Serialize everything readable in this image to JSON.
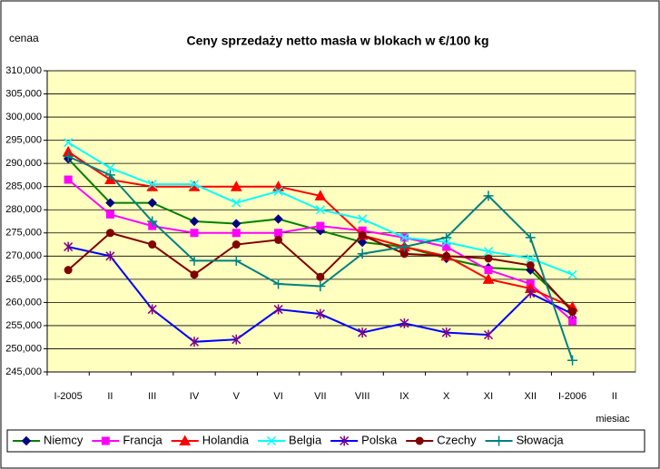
{
  "chart_data": {
    "type": "line",
    "title": "Ceny sprzedaży netto masła w blokach w €/100 kg",
    "y_label": "cenaa",
    "x_label": "miesiac",
    "categories": [
      "I-2005",
      "II",
      "III",
      "IV",
      "V",
      "VI",
      "VII",
      "VIII",
      "IX",
      "X",
      "XI",
      "XII",
      "I-2006",
      "II"
    ],
    "ylim": [
      245,
      310
    ],
    "yticks": [
      {
        "value": 245,
        "label": "245,000"
      },
      {
        "value": 250,
        "label": "250,000"
      },
      {
        "value": 255,
        "label": "255,000"
      },
      {
        "value": 260,
        "label": "260,000"
      },
      {
        "value": 265,
        "label": "265,000"
      },
      {
        "value": 270,
        "label": "270,000"
      },
      {
        "value": 275,
        "label": "275,000"
      },
      {
        "value": 280,
        "label": "280,000"
      },
      {
        "value": 285,
        "label": "285,000"
      },
      {
        "value": 290,
        "label": "290,000"
      },
      {
        "value": 295,
        "label": "295,000"
      },
      {
        "value": 300,
        "label": "300,000"
      },
      {
        "value": 305,
        "label": "305,000"
      },
      {
        "value": 310,
        "label": "310,000"
      }
    ],
    "grid": true,
    "legend": "bottom",
    "series": [
      {
        "name": "Niemcy",
        "color": "#008000",
        "marker_color": "#000080",
        "marker": "diamond",
        "values": [
          291,
          281.5,
          281.5,
          277.5,
          277,
          278,
          275.5,
          273,
          272,
          269.5,
          267.5,
          267,
          258.5,
          null
        ]
      },
      {
        "name": "Francja",
        "color": "#ff00ff",
        "marker_color": "#ff00ff",
        "marker": "square",
        "values": [
          286.5,
          279,
          276.5,
          275,
          275,
          275,
          276.5,
          275.5,
          274,
          272,
          267,
          264,
          256,
          null
        ]
      },
      {
        "name": "Holandia",
        "color": "#ff0000",
        "marker_color": "#ff0000",
        "marker": "triangle",
        "values": [
          292.5,
          286.5,
          285,
          285,
          285,
          285,
          283,
          274.5,
          272,
          270,
          265,
          263,
          259,
          null
        ]
      },
      {
        "name": "Belgia",
        "color": "#00ffff",
        "marker_color": "#00ffff",
        "marker": "x",
        "values": [
          294.5,
          289,
          285.5,
          285.5,
          281.5,
          284,
          280,
          278,
          274,
          273,
          271,
          269.5,
          266,
          null
        ]
      },
      {
        "name": "Polska",
        "color": "#0000ff",
        "marker_color": "#800080",
        "marker": "star",
        "values": [
          272,
          270,
          258.5,
          251.5,
          252,
          258.5,
          257.5,
          253.5,
          255.5,
          253.5,
          253,
          262,
          257.5,
          null
        ]
      },
      {
        "name": "Czechy",
        "color": "#800000",
        "marker_color": "#800000",
        "marker": "circle",
        "values": [
          267,
          275,
          272.5,
          266,
          272.5,
          273.5,
          265.5,
          274.5,
          270.5,
          270,
          269.5,
          268,
          258,
          null
        ]
      },
      {
        "name": "Słowacja",
        "color": "#008080",
        "marker_color": "#008080",
        "marker": "plus",
        "values": [
          291.5,
          287.5,
          277.5,
          269,
          269,
          264,
          263.5,
          270.5,
          272,
          274,
          283,
          274,
          247.5,
          null
        ]
      }
    ]
  }
}
